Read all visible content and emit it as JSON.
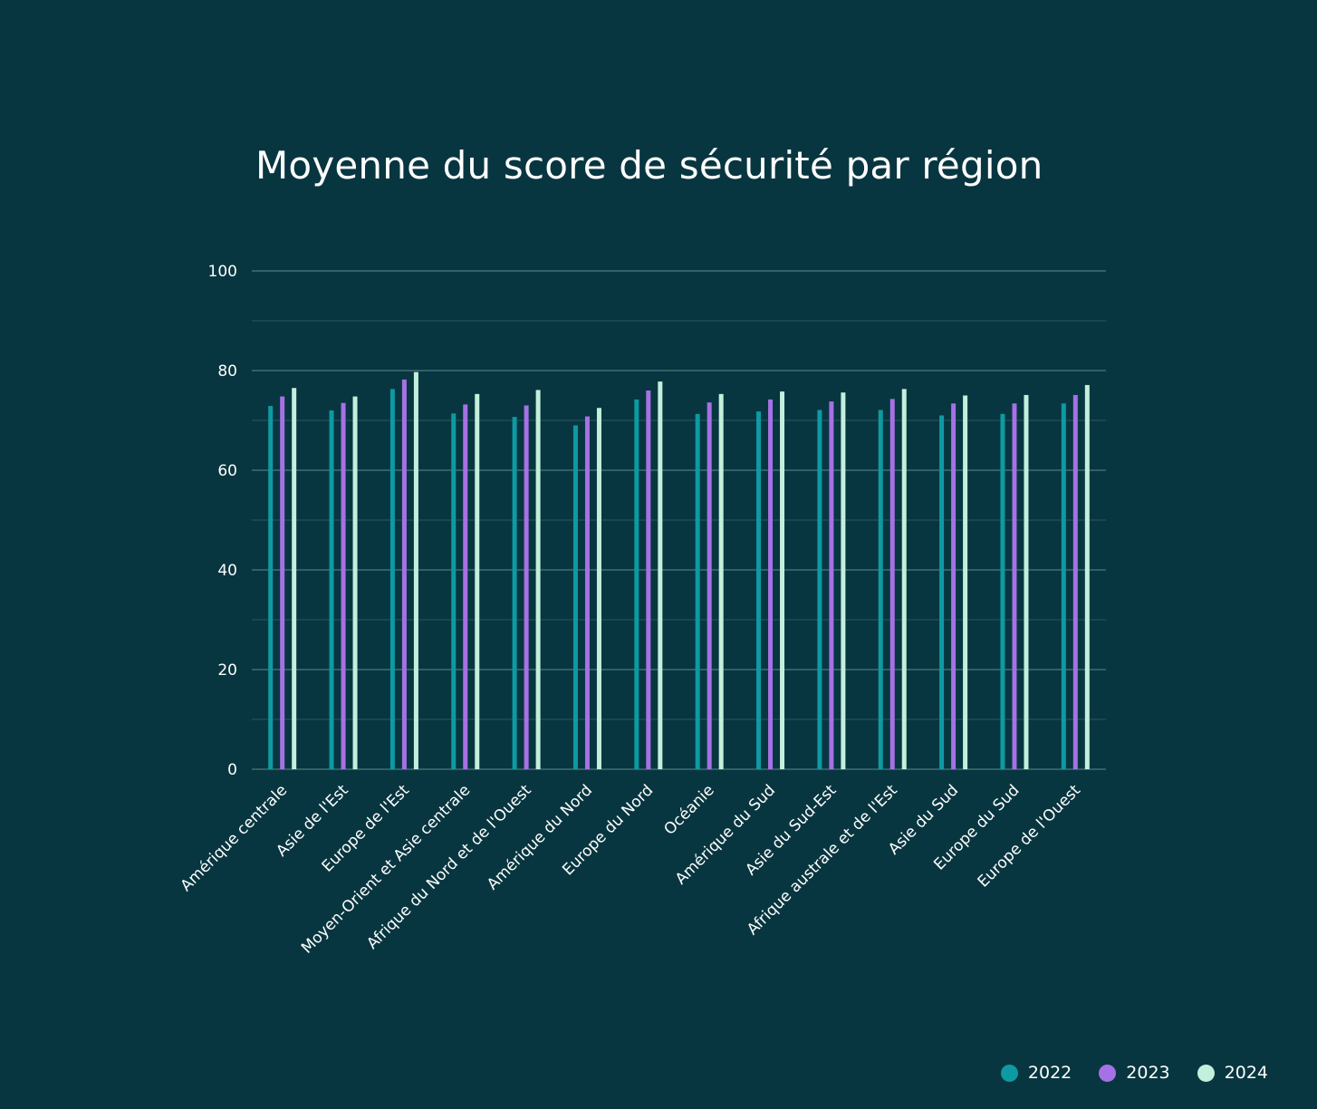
{
  "chart_data": {
    "type": "bar",
    "title": "Moyenne du score de sécurité par région",
    "xlabel": "",
    "ylabel": "",
    "ylim": [
      0,
      100
    ],
    "yticks": [
      "0",
      "20",
      "40",
      "60",
      "80",
      "100"
    ],
    "grid": true,
    "legend_position": "bottom-right",
    "categories": [
      "Amérique centrale",
      "Asie de l'Est",
      "Europe de l'Est",
      "Moyen-Orient et Asie centrale",
      "Afrique du Nord et de l'Ouest",
      "Amérique du Nord",
      "Europe du Nord",
      "Océanie",
      "Amérique du Sud",
      "Asie du Sud-Est",
      "Afrique australe et de l'Est",
      "Asie du Sud",
      "Europe du Sud",
      "Europe de l'Ouest"
    ],
    "series": [
      {
        "name": "2022",
        "color": "#0e9aa2",
        "values": [
          72.9,
          72.0,
          76.3,
          71.4,
          70.7,
          69.0,
          74.2,
          71.3,
          71.8,
          72.1,
          72.1,
          71.0,
          71.3,
          73.4
        ]
      },
      {
        "name": "2023",
        "color": "#a771e6",
        "values": [
          74.8,
          73.5,
          78.2,
          73.2,
          73.0,
          70.8,
          76.0,
          73.6,
          74.2,
          73.8,
          74.3,
          73.4,
          73.4,
          75.1
        ]
      },
      {
        "name": "2024",
        "color": "#c3efdd",
        "values": [
          76.5,
          74.8,
          79.7,
          75.3,
          76.1,
          72.5,
          77.8,
          75.3,
          75.8,
          75.6,
          76.3,
          75.0,
          75.1,
          77.1
        ]
      }
    ]
  },
  "legend": {
    "items": [
      "2022",
      "2023",
      "2024"
    ]
  },
  "colors": {
    "background": "#083640",
    "gridline": "#5d8b90",
    "minor_gridline": "#2a5660"
  }
}
